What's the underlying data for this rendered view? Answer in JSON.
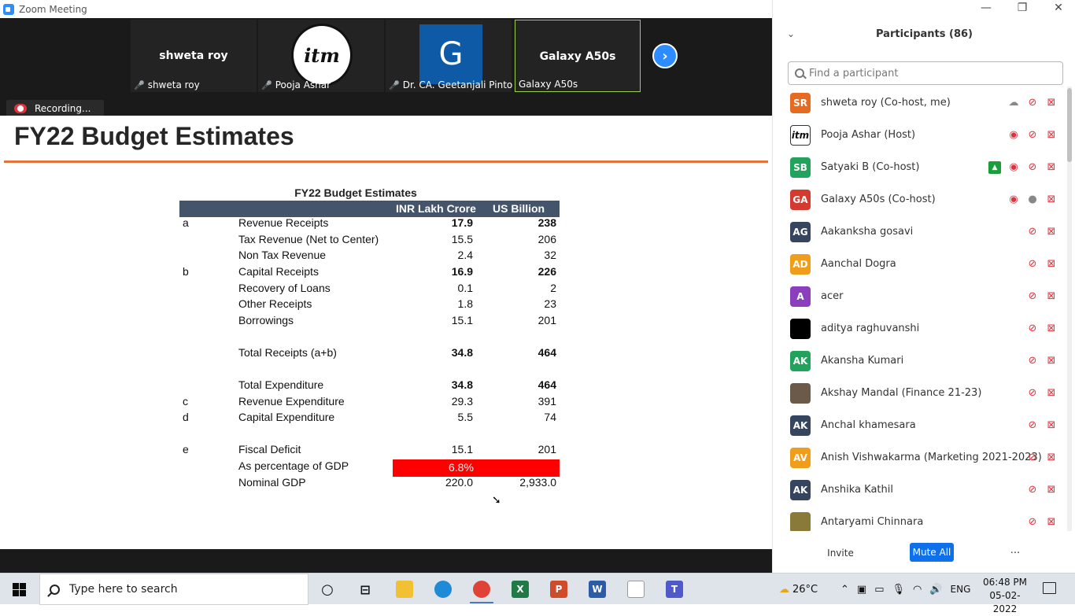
{
  "window": {
    "title": "Zoom Meeting"
  },
  "thumbnails": [
    {
      "center_name": "shweta roy",
      "label": "shweta roy"
    },
    {
      "label": "Pooja Ashar",
      "logo_text": "itm"
    },
    {
      "label": "Dr. CA. Geetanjali Pinto",
      "initial": "G"
    },
    {
      "center_name": "Galaxy A50s",
      "label": "Galaxy A50s"
    }
  ],
  "recording": {
    "label": "Recording..."
  },
  "slide": {
    "title": "FY22 Budget Estimates",
    "table_title": "FY22 Budget Estimates",
    "headers": {
      "col1": "INR Lakh Crore",
      "col2": "US Billion"
    },
    "rows": [
      {
        "key": "a",
        "label": "Revenue Receipts",
        "v1": "17.9",
        "v2": "238"
      },
      {
        "key": "",
        "label": "Tax Revenue (Net to Center)",
        "v1": "15.5",
        "v2": "206"
      },
      {
        "key": "",
        "label": "Non Tax Revenue",
        "v1": "2.4",
        "v2": "32"
      },
      {
        "key": "b",
        "label": "Capital Receipts",
        "v1": "16.9",
        "v2": "226"
      },
      {
        "key": "",
        "label": "Recovery of Loans",
        "v1": "0.1",
        "v2": "2"
      },
      {
        "key": "",
        "label": "Other Receipts",
        "v1": "1.8",
        "v2": "23"
      },
      {
        "key": "",
        "label": "Borrowings",
        "v1": "15.1",
        "v2": "201"
      },
      {
        "key": "",
        "label": "Total Receipts (a+b)",
        "v1": "34.8",
        "v2": "464"
      },
      {
        "key": "",
        "label": "Total Expenditure",
        "v1": "34.8",
        "v2": "464"
      },
      {
        "key": "c",
        "label": "Revenue Expenditure",
        "v1": "29.3",
        "v2": "391"
      },
      {
        "key": "d",
        "label": "Capital Expenditure",
        "v1": "5.5",
        "v2": "74"
      },
      {
        "key": "e",
        "label": "Fiscal Deficit",
        "v1": "15.1",
        "v2": "201"
      },
      {
        "key": "",
        "label": "As percentage of GDP",
        "v1": "6.8%",
        "v2": ""
      },
      {
        "key": "",
        "label": "Nominal GDP",
        "v1": "220.0",
        "v2": "2,933.0"
      }
    ]
  },
  "panel": {
    "title": "Participants (86)",
    "search_placeholder": "Find a participant",
    "participants": [
      {
        "initials": "SR",
        "color": "#e66a1f",
        "name": "shweta roy (Co-host, me)"
      },
      {
        "initials": "itm",
        "color": "#ffffff",
        "name": "Pooja Ashar (Host)"
      },
      {
        "initials": "SB",
        "color": "#21a35c",
        "name": "Satyaki B (Co-host)"
      },
      {
        "initials": "GA",
        "color": "#d33b30",
        "name": "Galaxy A50s (Co-host)"
      },
      {
        "initials": "AG",
        "color": "#36455f",
        "name": "Aakanksha gosavi"
      },
      {
        "initials": "AD",
        "color": "#f09d1b",
        "name": "Aanchal Dogra"
      },
      {
        "initials": "A",
        "color": "#8b3fbf",
        "name": "acer"
      },
      {
        "initials": "",
        "color": "#000000",
        "name": "aditya raghuvanshi"
      },
      {
        "initials": "AK",
        "color": "#21a35c",
        "name": "Akansha Kumari"
      },
      {
        "initials": "",
        "color": "#6b5a4a",
        "name": "Akshay Mandal (Finance 21-23)"
      },
      {
        "initials": "AK",
        "color": "#36455f",
        "name": "Anchal khamesara"
      },
      {
        "initials": "AV",
        "color": "#f09d1b",
        "name": "Anish Vishwakarma (Marketing 2021-2023)"
      },
      {
        "initials": "AK",
        "color": "#36455f",
        "name": "Anshika Kathil"
      },
      {
        "initials": "",
        "color": "#8a7a3a",
        "name": "Antaryami Chinnara"
      }
    ],
    "invite_label": "Invite",
    "mute_all_label": "Mute All",
    "more_label": "..."
  },
  "taskbar": {
    "search_placeholder": "Type here to search",
    "weather": "26°C",
    "language": "ENG",
    "time": "06:48 PM",
    "date": "05-02-2022"
  }
}
